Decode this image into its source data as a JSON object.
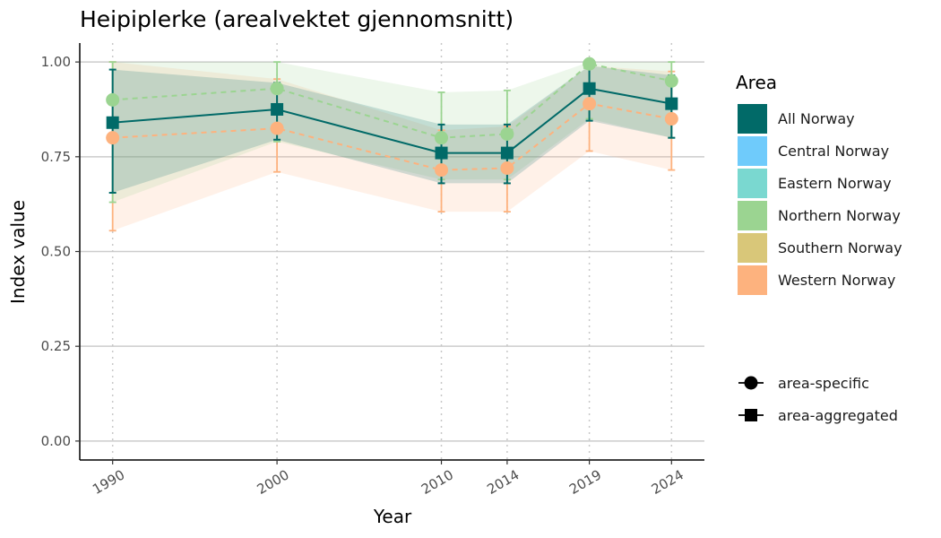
{
  "chart_data": {
    "type": "line",
    "title": "Heipiplerke (arealvektet gjennomsnitt)",
    "xlabel": "Year",
    "ylabel": "Index value",
    "x": [
      1990,
      2000,
      2010,
      2014,
      2019,
      2024
    ],
    "x_tick_labels": [
      "1990",
      "2000",
      "2010",
      "2014",
      "2019",
      "2024"
    ],
    "xlim": [
      1988,
      2026
    ],
    "ylim": [
      -0.05,
      1.05
    ],
    "y_ticks": [
      0.0,
      0.25,
      0.5,
      0.75,
      1.0
    ],
    "y_tick_labels": [
      "0.00",
      "0.25",
      "0.50",
      "0.75",
      "1.00"
    ],
    "grid": {
      "horizontal": true,
      "vertical_dotted_at_years": true
    },
    "series": [
      {
        "name": "Western Norway",
        "color": "#fdb27e",
        "linestyle": "dashed",
        "marker": "circle",
        "values": [
          0.8,
          0.825,
          0.715,
          0.72,
          0.89,
          0.85
        ],
        "lower": [
          0.555,
          0.71,
          0.605,
          0.605,
          0.765,
          0.715
        ],
        "upper": [
          1.0,
          0.955,
          0.82,
          0.83,
          0.99,
          0.975
        ]
      },
      {
        "name": "Northern Norway",
        "color": "#9bd491",
        "linestyle": "dashed",
        "marker": "circle",
        "values": [
          0.9,
          0.93,
          0.8,
          0.81,
          0.995,
          0.95
        ],
        "lower": [
          0.63,
          0.79,
          0.69,
          0.69,
          0.85,
          0.8
        ],
        "upper": [
          1.0,
          1.0,
          0.92,
          0.925,
          1.0,
          1.0
        ]
      },
      {
        "name": "All Norway",
        "color": "#016a68",
        "linestyle": "solid",
        "marker": "square",
        "values": [
          0.84,
          0.875,
          0.76,
          0.76,
          0.93,
          0.89
        ],
        "lower": [
          0.655,
          0.795,
          0.68,
          0.68,
          0.845,
          0.8
        ],
        "upper": [
          0.98,
          0.945,
          0.835,
          0.835,
          0.99,
          0.965
        ]
      }
    ],
    "legend": {
      "position": "right",
      "title": "Area",
      "areas": [
        {
          "label": "All Norway",
          "color": "#016a68"
        },
        {
          "label": "Central Norway",
          "color": "#6fcbfb"
        },
        {
          "label": "Eastern Norway",
          "color": "#7ad8d0"
        },
        {
          "label": "Northern Norway",
          "color": "#9bd491"
        },
        {
          "label": "Southern Norway",
          "color": "#d9c779"
        },
        {
          "label": "Western Norway",
          "color": "#fdb27e"
        }
      ],
      "shapes": [
        {
          "label": "area-specific",
          "marker": "circle"
        },
        {
          "label": "area-aggregated",
          "marker": "square"
        }
      ]
    }
  }
}
